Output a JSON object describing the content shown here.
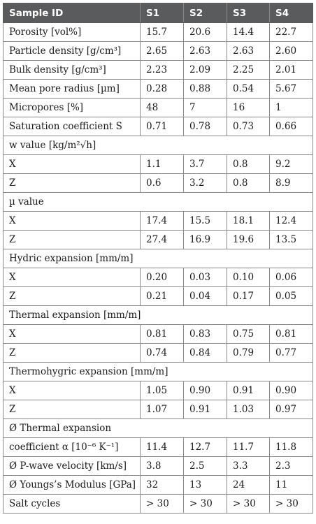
{
  "header": [
    "Sample ID",
    "S1",
    "S2",
    "S3",
    "S4"
  ],
  "rows": [
    {
      "label": "Porosity [vol%]",
      "values": [
        "15.7",
        "20.6",
        "14.4",
        "22.7"
      ]
    },
    {
      "label": "Particle density [g/cm³]",
      "values": [
        "2.65",
        "2.63",
        "2.63",
        "2.60"
      ]
    },
    {
      "label": "Bulk density [g/cm³]",
      "values": [
        "2.23",
        "2.09",
        "2.25",
        "2.01"
      ]
    },
    {
      "label": "Mean pore radius [µm]",
      "values": [
        "0.28",
        "0.88",
        "0.54",
        "5.67"
      ]
    },
    {
      "label": "Micropores [%]",
      "values": [
        "48",
        "7",
        "16",
        "1"
      ]
    },
    {
      "label": "Saturation coefficient S",
      "values": [
        "0.71",
        "0.78",
        "0.73",
        "0.66"
      ]
    },
    {
      "label": "w value [kg/m²√h]",
      "section": true
    },
    {
      "label": "X",
      "values": [
        "1.1",
        "3.7",
        "0.8",
        "9.2"
      ]
    },
    {
      "label": "Z",
      "values": [
        "0.6",
        "3.2",
        "0.8",
        "8.9"
      ]
    },
    {
      "label": "µ value",
      "section": true
    },
    {
      "label": "X",
      "values": [
        "17.4",
        "15.5",
        "18.1",
        "12.4"
      ]
    },
    {
      "label": "Z",
      "values": [
        "27.4",
        "16.9",
        "19.6",
        "13.5"
      ]
    },
    {
      "label": "Hydric expansion [mm/m]",
      "section": true
    },
    {
      "label": "X",
      "values": [
        "0.20",
        "0.03",
        "0.10",
        "0.06"
      ]
    },
    {
      "label": "Z",
      "values": [
        "0.21",
        "0.04",
        "0.17",
        "0.05"
      ]
    },
    {
      "label": "Thermal expansion [mm/m]",
      "section": true
    },
    {
      "label": "X",
      "values": [
        "0.81",
        "0.83",
        "0.75",
        "0.81"
      ]
    },
    {
      "label": "Z",
      "values": [
        "0.74",
        "0.84",
        "0.79",
        "0.77"
      ]
    },
    {
      "label": "Thermohygric expansion [mm/m]",
      "section": true
    },
    {
      "label": "X",
      "values": [
        "1.05",
        "0.90",
        "0.91",
        "0.90"
      ]
    },
    {
      "label": "Z",
      "values": [
        "1.07",
        "0.91",
        "1.03",
        "0.97"
      ]
    },
    {
      "label": "Ø Thermal expansion",
      "section": true
    },
    {
      "label": "coefficient α [10⁻⁶ K⁻¹]",
      "values": [
        "11.4",
        "12.7",
        "11.7",
        "11.8"
      ]
    },
    {
      "label": "Ø P-wave velocity [km/s]",
      "values": [
        "3.8",
        "2.5",
        "3.3",
        "2.3"
      ]
    },
    {
      "label": "Ø Youngs’s Modulus [GPa]",
      "values": [
        "32",
        "13",
        "24",
        "11"
      ]
    },
    {
      "label": "Salt cycles",
      "values": [
        "> 30",
        "> 30",
        "> 30",
        "> 30"
      ]
    }
  ]
}
